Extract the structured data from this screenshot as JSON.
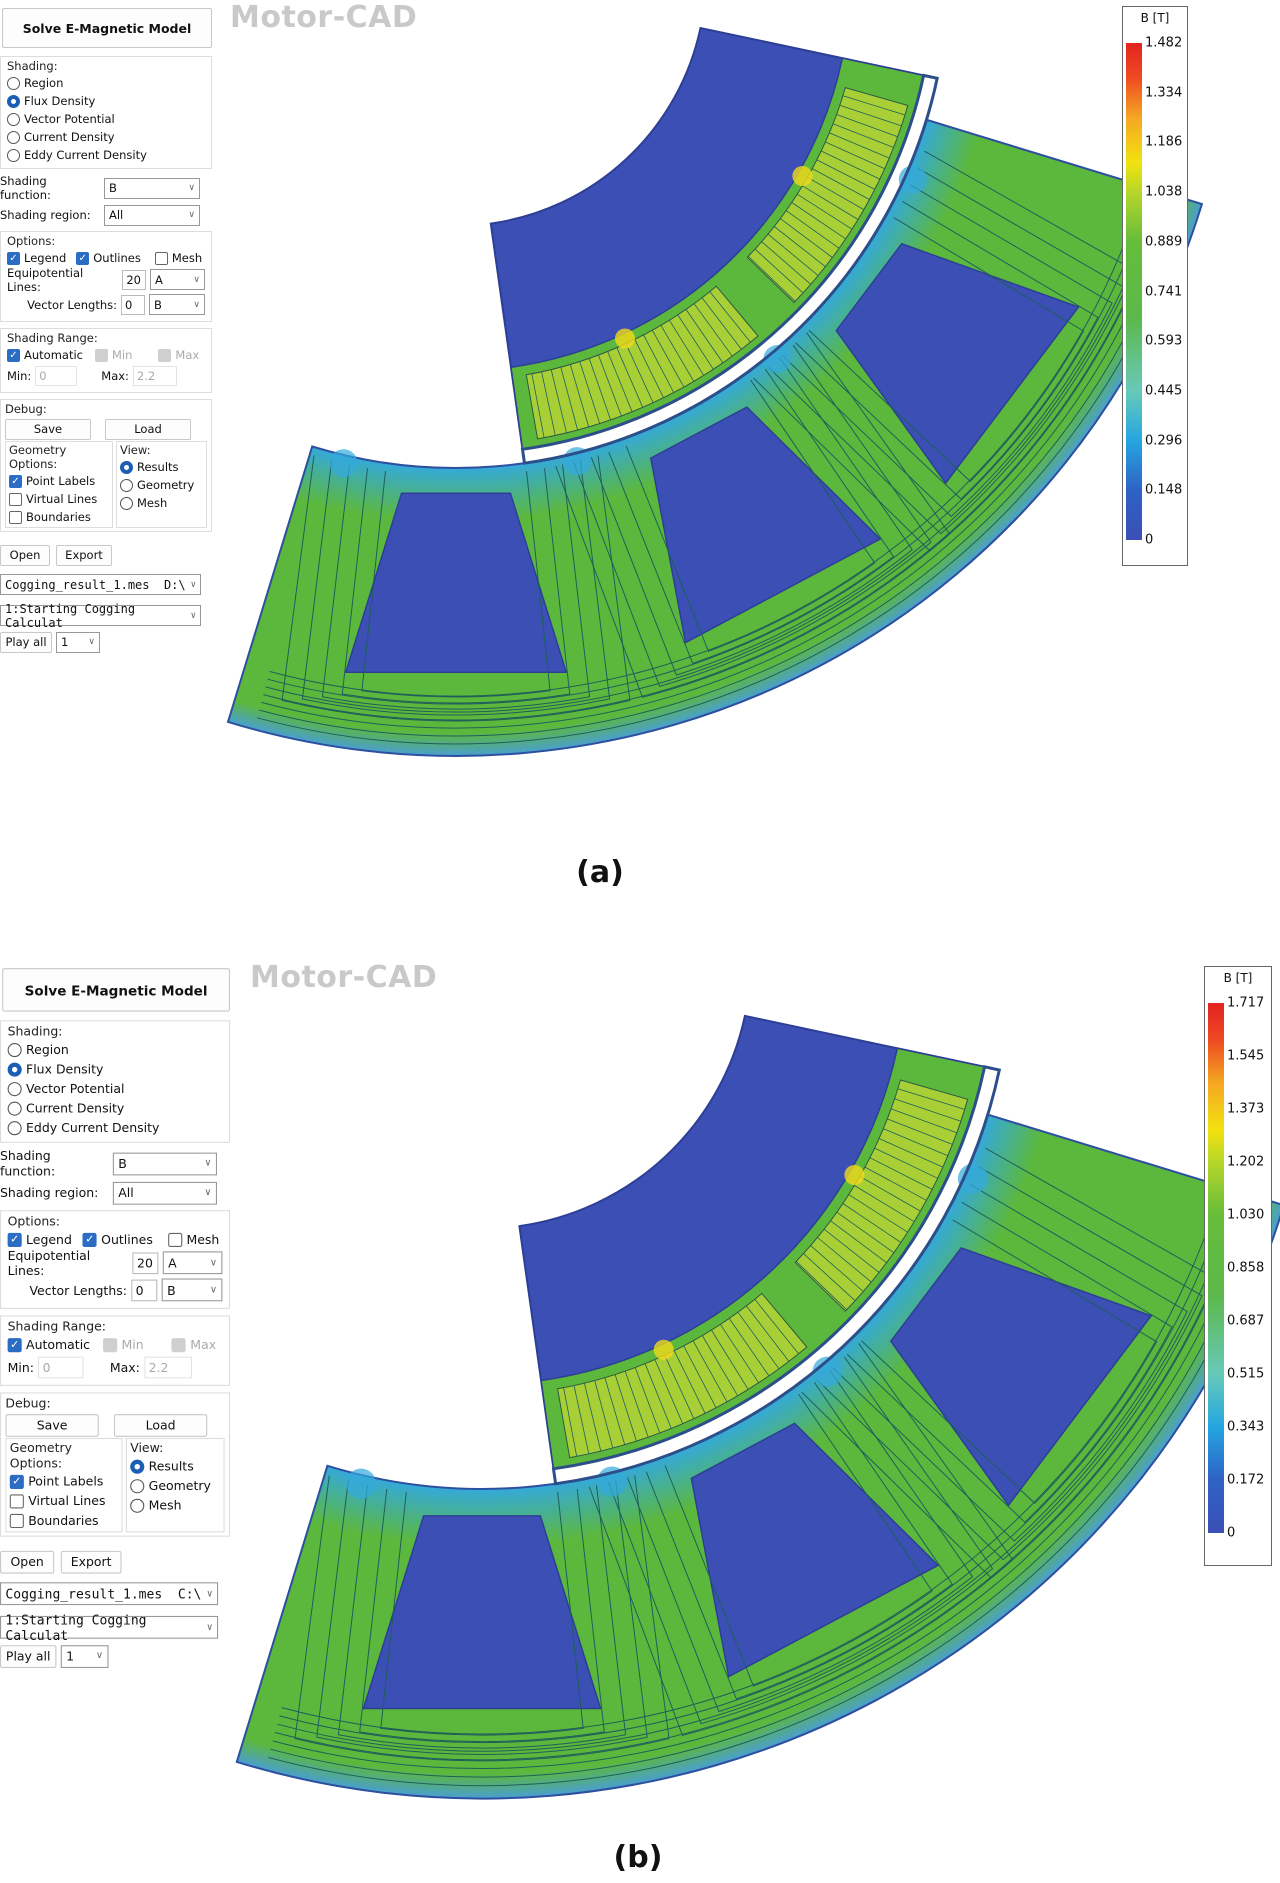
{
  "figures": [
    {
      "caption": "(a)",
      "watermark": "Motor-CAD",
      "panel": {
        "solve_button": "Solve E-Magnetic Model",
        "shading_title": "Shading:",
        "shading_options": [
          "Region",
          "Flux Density",
          "Vector Potential",
          "Current Density",
          "Eddy Current Density"
        ],
        "shading_selected": 1,
        "shading_function_label": "Shading function:",
        "shading_function_value": "B",
        "shading_region_label": "Shading region:",
        "shading_region_value": "All",
        "options_title": "Options:",
        "legend_label": "Legend",
        "legend_checked": true,
        "outlines_label": "Outlines",
        "outlines_checked": true,
        "mesh_label": "Mesh",
        "mesh_checked": false,
        "equipotential_label": "Equipotential Lines:",
        "equipotential_value": "20",
        "equipotential_select": "A",
        "vector_label": "Vector Lengths:",
        "vector_value": "0",
        "vector_select": "B",
        "range_title": "Shading Range:",
        "automatic_label": "Automatic",
        "min_cb_label": "Min",
        "max_cb_label": "Max",
        "min_label": "Min:",
        "min_value": "0",
        "max_label": "Max:",
        "max_value": "2.2",
        "debug_title": "Debug:",
        "save_button": "Save",
        "load_button": "Load",
        "geometry_title": "Geometry Options:",
        "point_labels": "Point Labels",
        "virtual_lines": "Virtual Lines",
        "boundaries": "Boundaries",
        "view_title": "View:",
        "view_options": [
          "Results",
          "Geometry",
          "Mesh"
        ],
        "open_button": "Open",
        "export_button": "Export",
        "file_select": "Cogging_result_1.mes  D:\\",
        "step_select": "1:Starting Cogging Calculat",
        "play_all_button": "Play all",
        "play_select": "1"
      },
      "legend": {
        "title": "B [T]",
        "ticks": [
          "1.482",
          "1.334",
          "1.186",
          "1.038",
          "0.889",
          "0.741",
          "0.593",
          "0.445",
          "0.296",
          "0.148",
          "0"
        ]
      }
    },
    {
      "caption": "(b)",
      "watermark": "Motor-CAD",
      "panel": {
        "solve_button": "Solve E-Magnetic Model",
        "shading_title": "Shading:",
        "shading_options": [
          "Region",
          "Flux Density",
          "Vector Potential",
          "Current Density",
          "Eddy Current Density"
        ],
        "shading_selected": 1,
        "shading_function_label": "Shading function:",
        "shading_function_value": "B",
        "shading_region_label": "Shading region:",
        "shading_region_value": "All",
        "options_title": "Options:",
        "legend_label": "Legend",
        "legend_checked": true,
        "outlines_label": "Outlines",
        "outlines_checked": true,
        "mesh_label": "Mesh",
        "mesh_checked": false,
        "equipotential_label": "Equipotential Lines:",
        "equipotential_value": "20",
        "equipotential_select": "A",
        "vector_label": "Vector Lengths:",
        "vector_value": "0",
        "vector_select": "B",
        "range_title": "Shading Range:",
        "automatic_label": "Automatic",
        "min_cb_label": "Min",
        "max_cb_label": "Max",
        "min_label": "Min:",
        "min_value": "0",
        "max_label": "Max:",
        "max_value": "2.2",
        "debug_title": "Debug:",
        "save_button": "Save",
        "load_button": "Load",
        "geometry_title": "Geometry Options:",
        "point_labels": "Point Labels",
        "virtual_lines": "Virtual Lines",
        "boundaries": "Boundaries",
        "view_title": "View:",
        "view_options": [
          "Results",
          "Geometry",
          "Mesh"
        ],
        "open_button": "Open",
        "export_button": "Export",
        "file_select": "Cogging_result_1.mes  C:\\",
        "step_select": "1:Starting Cogging Calculat",
        "play_all_button": "Play all",
        "play_select": "1"
      },
      "legend": {
        "title": "B [T]",
        "ticks": [
          "1.717",
          "1.545",
          "1.373",
          "1.202",
          "1.030",
          "0.858",
          "0.687",
          "0.515",
          "0.343",
          "0.172",
          "0"
        ]
      }
    }
  ],
  "colors": {
    "steel": "#5cb83c",
    "slot": "#3b4fb5",
    "low": "#34a9dc",
    "high": "#f2d91a",
    "flux_line": "#1f5f5a",
    "magnet": "#a9cf37"
  }
}
